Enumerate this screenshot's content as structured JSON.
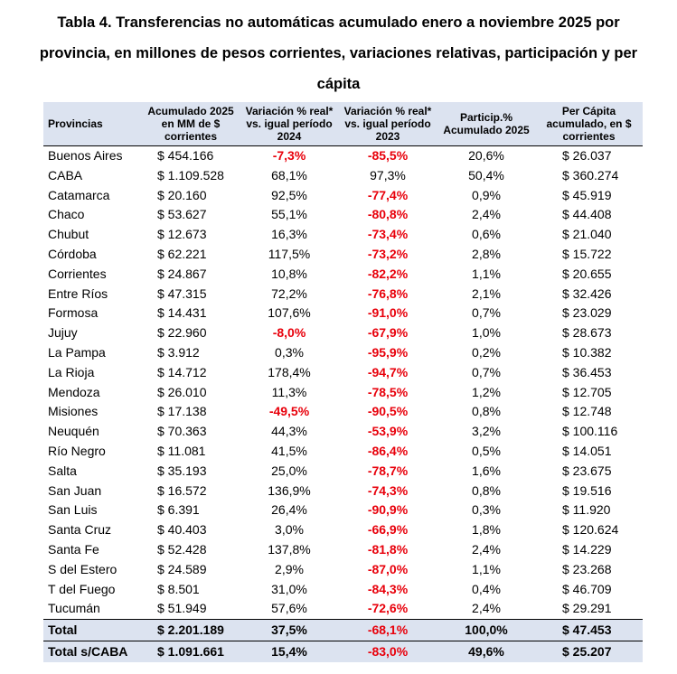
{
  "title": {
    "line1": "Tabla 4. Transferencias no automáticas acumulado enero a noviembre 2025 por",
    "line2": "provincia, en millones de pesos corrientes, variaciones relativas, participación y per",
    "line3": "cápita"
  },
  "colors": {
    "header_bg": "#dce3f0",
    "negative": "#e8000b"
  },
  "headers": [
    "Provincias",
    "Acumulado 2025 en MM de $ corrientes",
    "Variación % real* vs. igual período 2024",
    "Variación % real* vs. igual período 2023",
    "Particip.% Acumulado 2025",
    "Per Cápita acumulado, en $ corrientes"
  ],
  "rows": [
    [
      "Buenos Aires",
      "$ 454.166",
      "-7,3%",
      "-85,5%",
      "20,6%",
      "$ 26.037"
    ],
    [
      "CABA",
      "$ 1.109.528",
      "68,1%",
      "97,3%",
      "50,4%",
      "$ 360.274"
    ],
    [
      "Catamarca",
      "$ 20.160",
      "92,5%",
      "-77,4%",
      "0,9%",
      "$ 45.919"
    ],
    [
      "Chaco",
      "$ 53.627",
      "55,1%",
      "-80,8%",
      "2,4%",
      "$ 44.408"
    ],
    [
      "Chubut",
      "$ 12.673",
      "16,3%",
      "-73,4%",
      "0,6%",
      "$ 21.040"
    ],
    [
      "Córdoba",
      "$ 62.221",
      "117,5%",
      "-73,2%",
      "2,8%",
      "$ 15.722"
    ],
    [
      "Corrientes",
      "$ 24.867",
      "10,8%",
      "-82,2%",
      "1,1%",
      "$ 20.655"
    ],
    [
      "Entre Ríos",
      "$ 47.315",
      "72,2%",
      "-76,8%",
      "2,1%",
      "$ 32.426"
    ],
    [
      "Formosa",
      "$ 14.431",
      "107,6%",
      "-91,0%",
      "0,7%",
      "$ 23.029"
    ],
    [
      "Jujuy",
      "$ 22.960",
      "-8,0%",
      "-67,9%",
      "1,0%",
      "$ 28.673"
    ],
    [
      "La Pampa",
      "$ 3.912",
      "0,3%",
      "-95,9%",
      "0,2%",
      "$ 10.382"
    ],
    [
      "La Rioja",
      "$ 14.712",
      "178,4%",
      "-94,7%",
      "0,7%",
      "$ 36.453"
    ],
    [
      "Mendoza",
      "$ 26.010",
      "11,3%",
      "-78,5%",
      "1,2%",
      "$ 12.705"
    ],
    [
      "Misiones",
      "$ 17.138",
      "-49,5%",
      "-90,5%",
      "0,8%",
      "$ 12.748"
    ],
    [
      "Neuquén",
      "$ 70.363",
      "44,3%",
      "-53,9%",
      "3,2%",
      "$ 100.116"
    ],
    [
      "Río Negro",
      "$ 11.081",
      "41,5%",
      "-86,4%",
      "0,5%",
      "$ 14.051"
    ],
    [
      "Salta",
      "$ 35.193",
      "25,0%",
      "-78,7%",
      "1,6%",
      "$ 23.675"
    ],
    [
      "San Juan",
      "$ 16.572",
      "136,9%",
      "-74,3%",
      "0,8%",
      "$ 19.516"
    ],
    [
      "San Luis",
      "$ 6.391",
      "26,4%",
      "-90,9%",
      "0,3%",
      "$ 11.920"
    ],
    [
      "Santa Cruz",
      "$ 40.403",
      "3,0%",
      "-66,9%",
      "1,8%",
      "$ 120.624"
    ],
    [
      "Santa Fe",
      "$ 52.428",
      "137,8%",
      "-81,8%",
      "2,4%",
      "$ 14.229"
    ],
    [
      "S del Estero",
      "$ 24.589",
      "2,9%",
      "-87,0%",
      "1,1%",
      "$ 23.268"
    ],
    [
      "T del Fuego",
      "$ 8.501",
      "31,0%",
      "-84,3%",
      "0,4%",
      "$ 46.709"
    ],
    [
      "Tucumán",
      "$ 51.949",
      "57,6%",
      "-72,6%",
      "2,4%",
      "$ 29.291"
    ]
  ],
  "totals": [
    [
      "Total",
      "$ 2.201.189",
      "37,5%",
      "-68,1%",
      "100,0%",
      "$ 47.453"
    ],
    [
      "Total s/CABA",
      "$ 1.091.661",
      "15,4%",
      "-83,0%",
      "49,6%",
      "$ 25.207"
    ]
  ]
}
